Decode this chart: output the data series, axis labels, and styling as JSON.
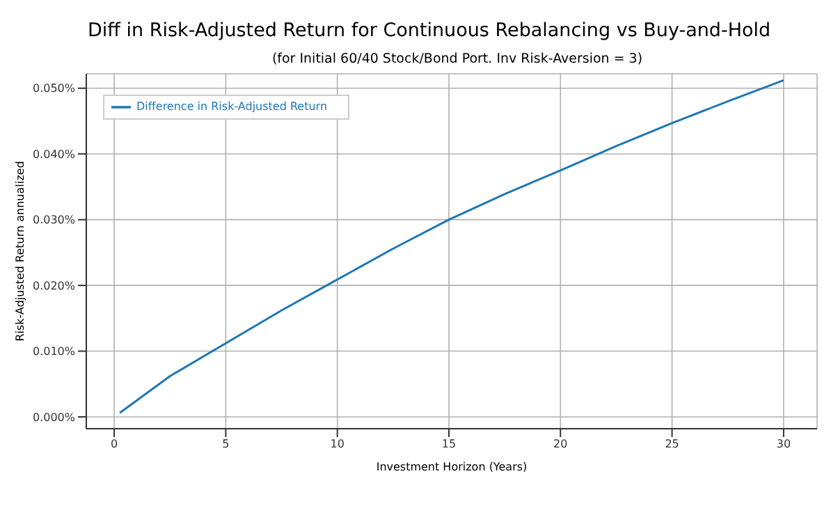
{
  "chart_data": {
    "type": "line",
    "title": "Diff in Risk-Adjusted Return for Continuous Rebalancing vs Buy-and-Hold",
    "subtitle": "(for Initial 60/40 Stock/Bond Port. Inv Risk-Aversion = 3)",
    "xlabel": "Investment Horizon (Years)",
    "ylabel": "Risk-Adjusted Return annualized",
    "x": [
      0.25,
      2.5,
      5,
      7.5,
      10,
      12.5,
      15,
      17.5,
      20,
      22.5,
      25,
      27.5,
      30
    ],
    "series": [
      {
        "name": "Difference in Risk-Adjusted Return",
        "color": "#1f77b4",
        "values": [
          0.0006,
          0.0062,
          0.0112,
          0.0162,
          0.0209,
          0.0256,
          0.03,
          0.0339,
          0.0375,
          0.0412,
          0.0447,
          0.048,
          0.0512
        ]
      }
    ],
    "xlim": [
      -1.25,
      31.5
    ],
    "ylim": [
      -0.0018,
      0.0522
    ],
    "xticks": [
      0,
      5,
      10,
      15,
      20,
      25,
      30
    ],
    "yticks": [
      {
        "value": 0,
        "label": "0.000%"
      },
      {
        "value": 0.01,
        "label": "0.010%"
      },
      {
        "value": 0.02,
        "label": "0.020%"
      },
      {
        "value": 0.03,
        "label": "0.030%"
      },
      {
        "value": 0.04,
        "label": "0.040%"
      },
      {
        "value": 0.05,
        "label": "0.050%"
      }
    ],
    "grid": true,
    "legend": "top left",
    "marker": "none",
    "line_style": "solid"
  }
}
